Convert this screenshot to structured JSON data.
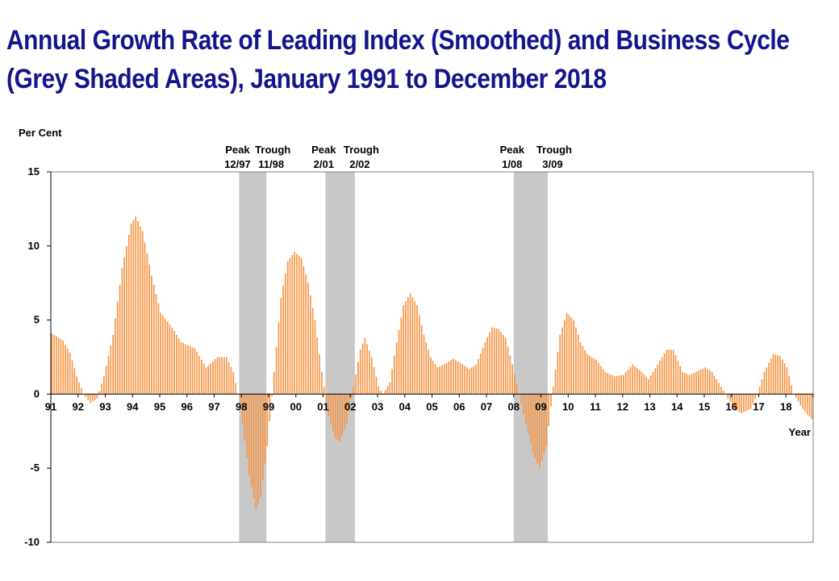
{
  "title_lines": [
    "Annual Growth Rate of Leading Index (Smoothed) and Business Cycle",
    "(Grey Shaded Areas), January 1991 to December 2018"
  ],
  "colors": {
    "bar": "#F79646",
    "shade": "#C8C8C8",
    "title": "#14148C",
    "axis": "#000000"
  },
  "chart_data": {
    "type": "bar",
    "title": "Annual Growth Rate of Leading Index (Smoothed) and Business Cycle (Grey Shaded Areas), January 1991 to December 2018",
    "ylabel": "Per Cent",
    "xlabel": "Year",
    "ylim": [
      -10,
      15
    ],
    "yticks": [
      15,
      10,
      5,
      0,
      -5,
      -10
    ],
    "x_range": [
      "1991-01",
      "2018-12"
    ],
    "x_tick_labels": [
      "91",
      "92",
      "93",
      "94",
      "95",
      "96",
      "97",
      "98",
      "99",
      "00",
      "01",
      "02",
      "03",
      "04",
      "05",
      "06",
      "07",
      "08",
      "09",
      "10",
      "11",
      "12",
      "13",
      "14",
      "15",
      "16",
      "17",
      "18"
    ],
    "grid": false,
    "recessions": [
      {
        "peak": "12/97",
        "trough": "11/98",
        "peak_date": "1997-12",
        "trough_date": "1998-11"
      },
      {
        "peak": "2/01",
        "trough": "2/02",
        "peak_date": "2001-02",
        "trough_date": "2002-02"
      },
      {
        "peak": "1/08",
        "trough": "3/09",
        "peak_date": "2008-01",
        "trough_date": "2009-03"
      }
    ],
    "annotation_words": {
      "peak": "Peak",
      "trough": "Trough"
    },
    "keypoints": [
      [
        "1991-01",
        4.1
      ],
      [
        "1991-06",
        3.6
      ],
      [
        "1991-09",
        2.8
      ],
      [
        "1991-12",
        1.2
      ],
      [
        "1992-03",
        0.0
      ],
      [
        "1992-06",
        -0.6
      ],
      [
        "1992-09",
        -0.3
      ],
      [
        "1992-12",
        1.2
      ],
      [
        "1993-04",
        4.0
      ],
      [
        "1993-08",
        8.5
      ],
      [
        "1993-12",
        11.5
      ],
      [
        "1994-02",
        12.0
      ],
      [
        "1994-05",
        11.0
      ],
      [
        "1994-09",
        8.0
      ],
      [
        "1995-01",
        5.5
      ],
      [
        "1995-06",
        4.5
      ],
      [
        "1995-10",
        3.5
      ],
      [
        "1996-04",
        3.1
      ],
      [
        "1996-09",
        1.8
      ],
      [
        "1997-02",
        2.5
      ],
      [
        "1997-06",
        2.5
      ],
      [
        "1997-09",
        1.5
      ],
      [
        "1997-11",
        0.0
      ],
      [
        "1998-01",
        -2.0
      ],
      [
        "1998-04",
        -5.5
      ],
      [
        "1998-07",
        -7.8
      ],
      [
        "1998-09",
        -7.0
      ],
      [
        "1998-12",
        -3.5
      ],
      [
        "1999-03",
        1.5
      ],
      [
        "1999-06",
        6.5
      ],
      [
        "1999-09",
        9.0
      ],
      [
        "1999-12",
        9.6
      ],
      [
        "2000-03",
        9.2
      ],
      [
        "2000-06",
        7.5
      ],
      [
        "2000-09",
        5.0
      ],
      [
        "2000-12",
        1.5
      ],
      [
        "2001-03",
        -1.5
      ],
      [
        "2001-06",
        -3.0
      ],
      [
        "2001-08",
        -3.2
      ],
      [
        "2001-11",
        -2.0
      ],
      [
        "2002-02",
        0.5
      ],
      [
        "2002-05",
        3.0
      ],
      [
        "2002-07",
        3.8
      ],
      [
        "2002-10",
        2.5
      ],
      [
        "2003-01",
        0.5
      ],
      [
        "2003-03",
        0.0
      ],
      [
        "2003-06",
        0.8
      ],
      [
        "2003-09",
        3.5
      ],
      [
        "2003-12",
        6.0
      ],
      [
        "2004-03",
        6.8
      ],
      [
        "2004-06",
        6.0
      ],
      [
        "2004-09",
        4.0
      ],
      [
        "2004-12",
        2.5
      ],
      [
        "2005-03",
        1.8
      ],
      [
        "2005-07",
        2.1
      ],
      [
        "2005-10",
        2.4
      ],
      [
        "2006-02",
        2.0
      ],
      [
        "2006-05",
        1.7
      ],
      [
        "2006-08",
        2.0
      ],
      [
        "2006-12",
        3.5
      ],
      [
        "2007-03",
        4.5
      ],
      [
        "2007-06",
        4.4
      ],
      [
        "2007-09",
        3.8
      ],
      [
        "2007-12",
        2.0
      ],
      [
        "2008-03",
        0.0
      ],
      [
        "2008-06",
        -2.0
      ],
      [
        "2008-09",
        -4.0
      ],
      [
        "2008-12",
        -5.0
      ],
      [
        "2009-03",
        -3.5
      ],
      [
        "2009-06",
        0.5
      ],
      [
        "2009-09",
        4.0
      ],
      [
        "2009-12",
        5.5
      ],
      [
        "2010-03",
        5.0
      ],
      [
        "2010-06",
        3.5
      ],
      [
        "2010-09",
        2.7
      ],
      [
        "2011-01",
        2.3
      ],
      [
        "2011-05",
        1.5
      ],
      [
        "2011-09",
        1.2
      ],
      [
        "2012-01",
        1.3
      ],
      [
        "2012-05",
        2.0
      ],
      [
        "2012-09",
        1.5
      ],
      [
        "2012-12",
        1.0
      ],
      [
        "2013-04",
        2.0
      ],
      [
        "2013-08",
        3.0
      ],
      [
        "2013-11",
        3.0
      ],
      [
        "2014-03",
        1.5
      ],
      [
        "2014-06",
        1.3
      ],
      [
        "2014-09",
        1.5
      ],
      [
        "2015-01",
        1.8
      ],
      [
        "2015-04",
        1.5
      ],
      [
        "2015-08",
        0.5
      ],
      [
        "2015-11",
        -0.3
      ],
      [
        "2016-02",
        -1.0
      ],
      [
        "2016-05",
        -1.3
      ],
      [
        "2016-09",
        -1.0
      ],
      [
        "2016-12",
        0.0
      ],
      [
        "2017-03",
        1.5
      ],
      [
        "2017-07",
        2.7
      ],
      [
        "2017-10",
        2.6
      ],
      [
        "2018-01",
        1.8
      ],
      [
        "2018-04",
        0.0
      ],
      [
        "2018-08",
        -1.0
      ],
      [
        "2018-12",
        -1.7
      ]
    ]
  }
}
